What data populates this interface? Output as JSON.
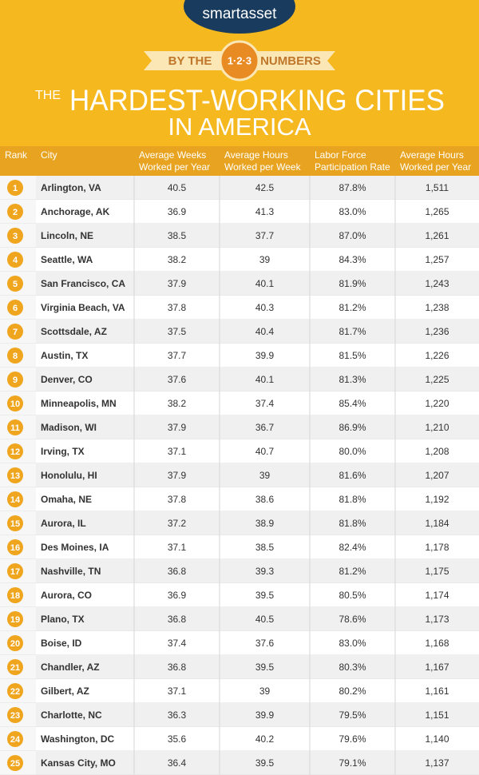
{
  "header": {
    "logo": "smartasset",
    "banner_left": "BY THE",
    "banner_badge": "1·2·3",
    "banner_right": "NUMBERS",
    "title_prefix": "THE",
    "title_line1": "HARDEST-WORKING CITIES",
    "title_line2": "IN AMERICA"
  },
  "table": {
    "columns": [
      "Rank",
      "City",
      "Average Weeks|Worked per Year",
      "Average Hours|Worked per Week",
      "Labor Force|Participation Rate",
      "Average Hours|Worked per Year"
    ],
    "rows": [
      [
        "1",
        "Arlington, VA",
        "40.5",
        "42.5",
        "87.8%",
        "1,511"
      ],
      [
        "2",
        "Anchorage, AK",
        "36.9",
        "41.3",
        "83.0%",
        "1,265"
      ],
      [
        "3",
        "Lincoln, NE",
        "38.5",
        "37.7",
        "87.0%",
        "1,261"
      ],
      [
        "4",
        "Seattle, WA",
        "38.2",
        "39",
        "84.3%",
        "1,257"
      ],
      [
        "5",
        "San Francisco, CA",
        "37.9",
        "40.1",
        "81.9%",
        "1,243"
      ],
      [
        "6",
        "Virginia Beach, VA",
        "37.8",
        "40.3",
        "81.2%",
        "1,238"
      ],
      [
        "7",
        "Scottsdale, AZ",
        "37.5",
        "40.4",
        "81.7%",
        "1,236"
      ],
      [
        "8",
        "Austin, TX",
        "37.7",
        "39.9",
        "81.5%",
        "1,226"
      ],
      [
        "9",
        "Denver, CO",
        "37.6",
        "40.1",
        "81.3%",
        "1,225"
      ],
      [
        "10",
        "Minneapolis, MN",
        "38.2",
        "37.4",
        "85.4%",
        "1,220"
      ],
      [
        "11",
        "Madison, WI",
        "37.9",
        "36.7",
        "86.9%",
        "1,210"
      ],
      [
        "12",
        "Irving, TX",
        "37.1",
        "40.7",
        "80.0%",
        "1,208"
      ],
      [
        "13",
        "Honolulu, HI",
        "37.9",
        "39",
        "81.6%",
        "1,207"
      ],
      [
        "14",
        "Omaha, NE",
        "37.8",
        "38.6",
        "81.8%",
        "1,192"
      ],
      [
        "15",
        "Aurora, IL",
        "37.2",
        "38.9",
        "81.8%",
        "1,184"
      ],
      [
        "16",
        "Des Moines, IA",
        "37.1",
        "38.5",
        "82.4%",
        "1,178"
      ],
      [
        "17",
        "Nashville, TN",
        "36.8",
        "39.3",
        "81.2%",
        "1,175"
      ],
      [
        "18",
        "Aurora, CO",
        "36.9",
        "39.5",
        "80.5%",
        "1,174"
      ],
      [
        "19",
        "Plano, TX",
        "36.8",
        "40.5",
        "78.6%",
        "1,173"
      ],
      [
        "20",
        "Boise, ID",
        "37.4",
        "37.6",
        "83.0%",
        "1,168"
      ],
      [
        "21",
        "Chandler, AZ",
        "36.8",
        "39.5",
        "80.3%",
        "1,167"
      ],
      [
        "22",
        "Gilbert, AZ",
        "37.1",
        "39",
        "80.2%",
        "1,161"
      ],
      [
        "23",
        "Charlotte, NC",
        "36.3",
        "39.9",
        "79.5%",
        "1,151"
      ],
      [
        "24",
        "Washington, DC",
        "35.6",
        "40.2",
        "79.6%",
        "1,140"
      ],
      [
        "25",
        "Kansas City, MO",
        "36.4",
        "39.5",
        "79.1%",
        "1,137"
      ]
    ]
  }
}
